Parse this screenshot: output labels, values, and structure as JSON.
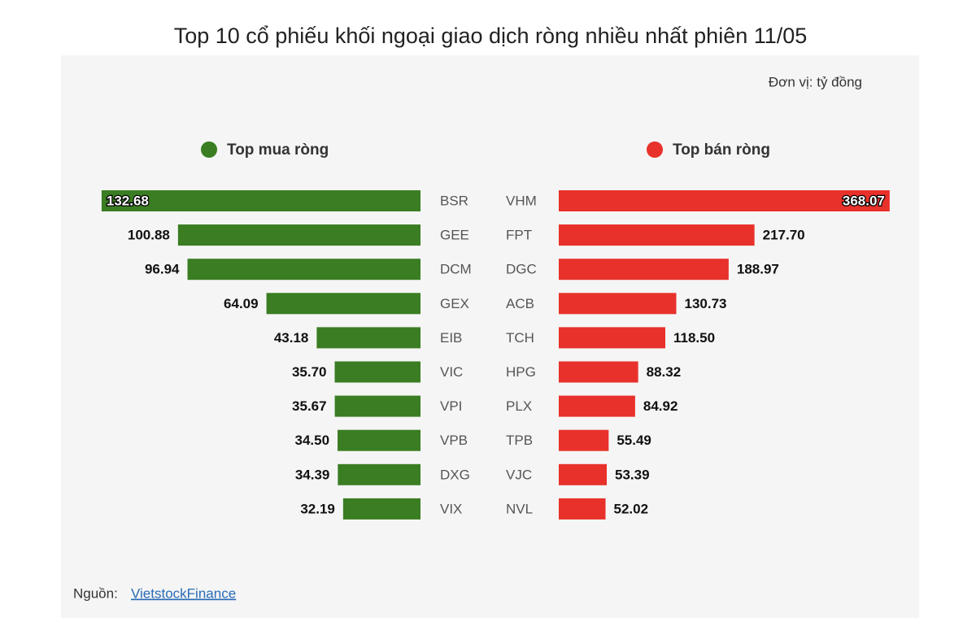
{
  "title": "Top 10 cổ phiếu khối ngoại giao dịch ròng nhiều nhất phiên 11/05",
  "unit": "Đơn vị: tỷ đồng",
  "source": {
    "label": "Nguồn:",
    "link": "VietstockFinance"
  },
  "chart_data": [
    {
      "type": "bar",
      "orientation": "horizontal",
      "direction": "left",
      "categories": [
        "BSR",
        "GEE",
        "DCM",
        "GEX",
        "EIB",
        "VIC",
        "VPI",
        "VPB",
        "DXG",
        "VIX"
      ],
      "series": [
        {
          "name": "Top mua ròng",
          "color": "#3a7d22",
          "values": [
            132.68,
            100.88,
            96.94,
            64.09,
            43.18,
            35.7,
            35.67,
            34.5,
            34.39,
            32.19
          ],
          "value_labels": [
            "132.68",
            "100.88",
            "96.94",
            "64.09",
            "43.18",
            "35.70",
            "35.67",
            "34.50",
            "34.39",
            "32.19"
          ]
        }
      ],
      "xlim": [
        0,
        134
      ]
    },
    {
      "type": "bar",
      "orientation": "horizontal",
      "direction": "right",
      "categories": [
        "VHM",
        "FPT",
        "DGC",
        "ACB",
        "TCH",
        "HPG",
        "PLX",
        "TPB",
        "VJC",
        "NVL"
      ],
      "series": [
        {
          "name": "Top bán ròng",
          "color": "#e8312a",
          "values": [
            368.07,
            217.7,
            188.97,
            130.73,
            118.5,
            88.32,
            84.92,
            55.49,
            53.39,
            52.02
          ],
          "value_labels": [
            "368.07",
            "217.70",
            "188.97",
            "130.73",
            "118.50",
            "88.32",
            "84.92",
            "55.49",
            "53.39",
            "52.02"
          ]
        }
      ],
      "xlim": [
        0,
        370
      ]
    }
  ]
}
